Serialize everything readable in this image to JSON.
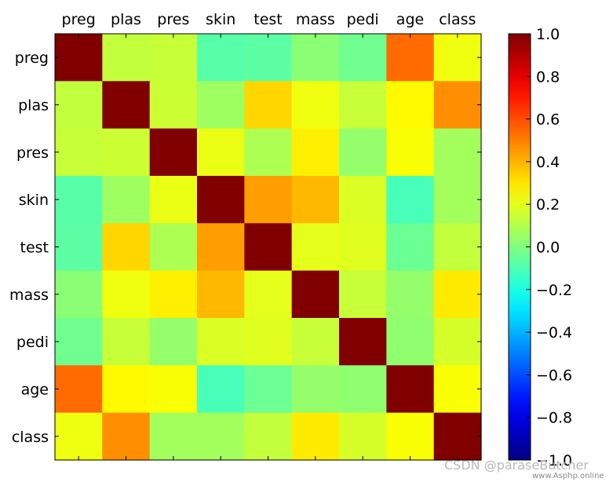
{
  "chart_data": {
    "type": "heatmap",
    "xlabels": [
      "preg",
      "plas",
      "pres",
      "skin",
      "test",
      "mass",
      "pedi",
      "age",
      "class"
    ],
    "ylabels": [
      "preg",
      "plas",
      "pres",
      "skin",
      "test",
      "mass",
      "pedi",
      "age",
      "class"
    ],
    "colormap": "jet",
    "vmin": -1.0,
    "vmax": 1.0,
    "colorbar_ticks": [
      1.0,
      0.8,
      0.6,
      0.4,
      0.2,
      0.0,
      -0.2,
      -0.4,
      -0.6,
      -0.8,
      -1.0
    ],
    "colorbar_tick_labels": [
      "1.0",
      "0.8",
      "0.6",
      "0.4",
      "0.2",
      "0.0",
      "−0.2",
      "−0.4",
      "−0.6",
      "−0.8",
      "−1.0"
    ],
    "matrix": [
      [
        1.0,
        0.13,
        0.14,
        -0.08,
        -0.07,
        0.02,
        -0.03,
        0.54,
        0.22
      ],
      [
        0.13,
        1.0,
        0.15,
        0.06,
        0.33,
        0.22,
        0.14,
        0.26,
        0.47
      ],
      [
        0.14,
        0.15,
        1.0,
        0.21,
        0.09,
        0.28,
        0.04,
        0.24,
        0.07
      ],
      [
        -0.08,
        0.06,
        0.21,
        1.0,
        0.44,
        0.39,
        0.18,
        -0.11,
        0.07
      ],
      [
        -0.07,
        0.33,
        0.09,
        0.44,
        1.0,
        0.2,
        0.19,
        -0.04,
        0.13
      ],
      [
        0.02,
        0.22,
        0.28,
        0.39,
        0.2,
        1.0,
        0.14,
        0.04,
        0.29
      ],
      [
        -0.03,
        0.14,
        0.04,
        0.18,
        0.19,
        0.14,
        1.0,
        0.03,
        0.17
      ],
      [
        0.54,
        0.26,
        0.24,
        -0.11,
        -0.04,
        0.04,
        0.03,
        1.0,
        0.24
      ],
      [
        0.22,
        0.47,
        0.07,
        0.07,
        0.13,
        0.29,
        0.17,
        0.24,
        1.0
      ]
    ]
  },
  "watermark": {
    "csdn": "CSDN @paraseButcher",
    "site": "www.Asphp.online"
  }
}
